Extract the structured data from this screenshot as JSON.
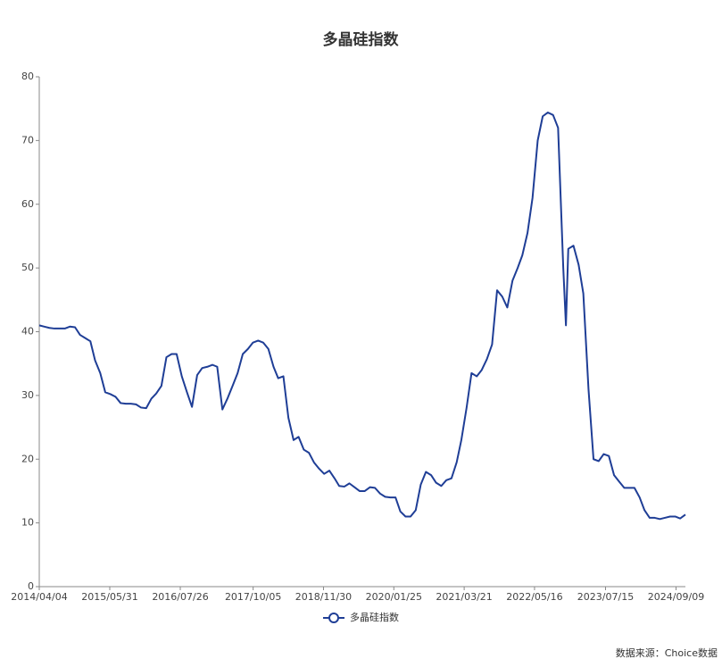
{
  "chart_data": {
    "type": "line",
    "title": "多晶硅指数",
    "source": "数据来源：Choice数据",
    "x": [
      "2014/04/04",
      "2014/05/04",
      "2014/06/04",
      "2014/07/04",
      "2014/08/04",
      "2014/09/04",
      "2014/10/04",
      "2014/11/04",
      "2014/12/04",
      "2015/01/04",
      "2015/02/04",
      "2015/03/04",
      "2015/04/04",
      "2015/05/04",
      "2015/06/04",
      "2015/07/04",
      "2015/08/04",
      "2015/09/04",
      "2015/10/04",
      "2015/11/04",
      "2015/12/04",
      "2016/01/04",
      "2016/02/04",
      "2016/03/04",
      "2016/04/04",
      "2016/05/04",
      "2016/06/04",
      "2016/07/04",
      "2016/08/04",
      "2016/09/04",
      "2016/10/04",
      "2016/11/04",
      "2016/12/04",
      "2017/01/04",
      "2017/02/04",
      "2017/03/04",
      "2017/04/04",
      "2017/05/04",
      "2017/06/04",
      "2017/07/04",
      "2017/08/04",
      "2017/09/04",
      "2017/10/04",
      "2017/11/04",
      "2017/12/04",
      "2018/01/04",
      "2018/02/04",
      "2018/03/04",
      "2018/04/04",
      "2018/05/04",
      "2018/06/04",
      "2018/07/04",
      "2018/08/04",
      "2018/09/04",
      "2018/10/04",
      "2018/11/04",
      "2018/12/04",
      "2019/01/04",
      "2019/02/04",
      "2019/03/04",
      "2019/04/04",
      "2019/05/04",
      "2019/06/04",
      "2019/07/04",
      "2019/08/04",
      "2019/09/04",
      "2019/10/04",
      "2019/11/04",
      "2019/12/04",
      "2020/01/04",
      "2020/02/04",
      "2020/03/04",
      "2020/04/04",
      "2020/05/04",
      "2020/06/04",
      "2020/07/04",
      "2020/08/04",
      "2020/09/04",
      "2020/10/04",
      "2020/11/04",
      "2020/12/04",
      "2021/01/04",
      "2021/02/04",
      "2021/03/04",
      "2021/04/04",
      "2021/05/04",
      "2021/06/04",
      "2021/07/04",
      "2021/08/04",
      "2021/09/04",
      "2021/10/04",
      "2021/11/04",
      "2021/12/04",
      "2022/01/04",
      "2022/02/04",
      "2022/03/04",
      "2022/04/04",
      "2022/05/04",
      "2022/06/04",
      "2022/07/04",
      "2022/08/04",
      "2022/09/04",
      "2022/10/04",
      "2022/11/04",
      "2022/11/20",
      "2022/12/04",
      "2023/01/04",
      "2023/02/04",
      "2023/03/04",
      "2023/04/04",
      "2023/05/04",
      "2023/06/04",
      "2023/07/04",
      "2023/08/04",
      "2023/09/04",
      "2023/10/04",
      "2023/11/04",
      "2023/12/04",
      "2024/01/04",
      "2024/02/04",
      "2024/03/04",
      "2024/04/04",
      "2024/05/04",
      "2024/06/04",
      "2024/07/04",
      "2024/08/04",
      "2024/09/04",
      "2024/10/04",
      "2024/11/04"
    ],
    "series": [
      {
        "name": "多晶硅指数",
        "color": "#1f3e96",
        "values": [
          41,
          40.8,
          40.6,
          40.5,
          40.5,
          40.5,
          40.8,
          40.7,
          39.5,
          39,
          38.5,
          35.5,
          33.5,
          30.5,
          30.2,
          29.8,
          28.8,
          28.7,
          28.7,
          28.6,
          28.1,
          28,
          29.5,
          30.3,
          31.5,
          36,
          36.5,
          36.5,
          33,
          30.5,
          28.2,
          33.2,
          34.3,
          34.5,
          34.8,
          34.5,
          27.8,
          29.5,
          31.5,
          33.5,
          36.5,
          37.3,
          38.3,
          38.6,
          38.3,
          37.3,
          34.5,
          32.7,
          33,
          26.5,
          23,
          23.5,
          21.5,
          21,
          19.5,
          18.5,
          17.7,
          18.2,
          17,
          15.8,
          15.7,
          16.2,
          15.6,
          15,
          15,
          15.6,
          15.5,
          14.6,
          14.1,
          14,
          14,
          11.8,
          11,
          11,
          12,
          16,
          18,
          17.5,
          16.3,
          15.8,
          16.7,
          17,
          19.5,
          23,
          28,
          33.5,
          33,
          34,
          35.7,
          38,
          46.5,
          45.5,
          43.8,
          48,
          50,
          52,
          55.5,
          61,
          70,
          73.8,
          74.4,
          74,
          72,
          50,
          41,
          53,
          53.5,
          50.5,
          46,
          31,
          20,
          19.7,
          20.8,
          20.5,
          17.5,
          16.5,
          15.5,
          15.5,
          15.5,
          14,
          12,
          10.8,
          10.8,
          10.6,
          10.8,
          11,
          11,
          10.7,
          11.3
        ]
      }
    ],
    "xlim": [
      "2014/04/04",
      "2024/11/04"
    ],
    "xticks": [
      "2014/04/04",
      "2015/05/31",
      "2016/07/26",
      "2017/10/05",
      "2018/11/30",
      "2020/01/25",
      "2021/03/21",
      "2022/05/16",
      "2023/07/15",
      "2024/09/09"
    ],
    "ylim": [
      0,
      80
    ],
    "yticks": [
      0,
      10,
      20,
      30,
      40,
      50,
      60,
      70,
      80
    ],
    "grid": false
  }
}
